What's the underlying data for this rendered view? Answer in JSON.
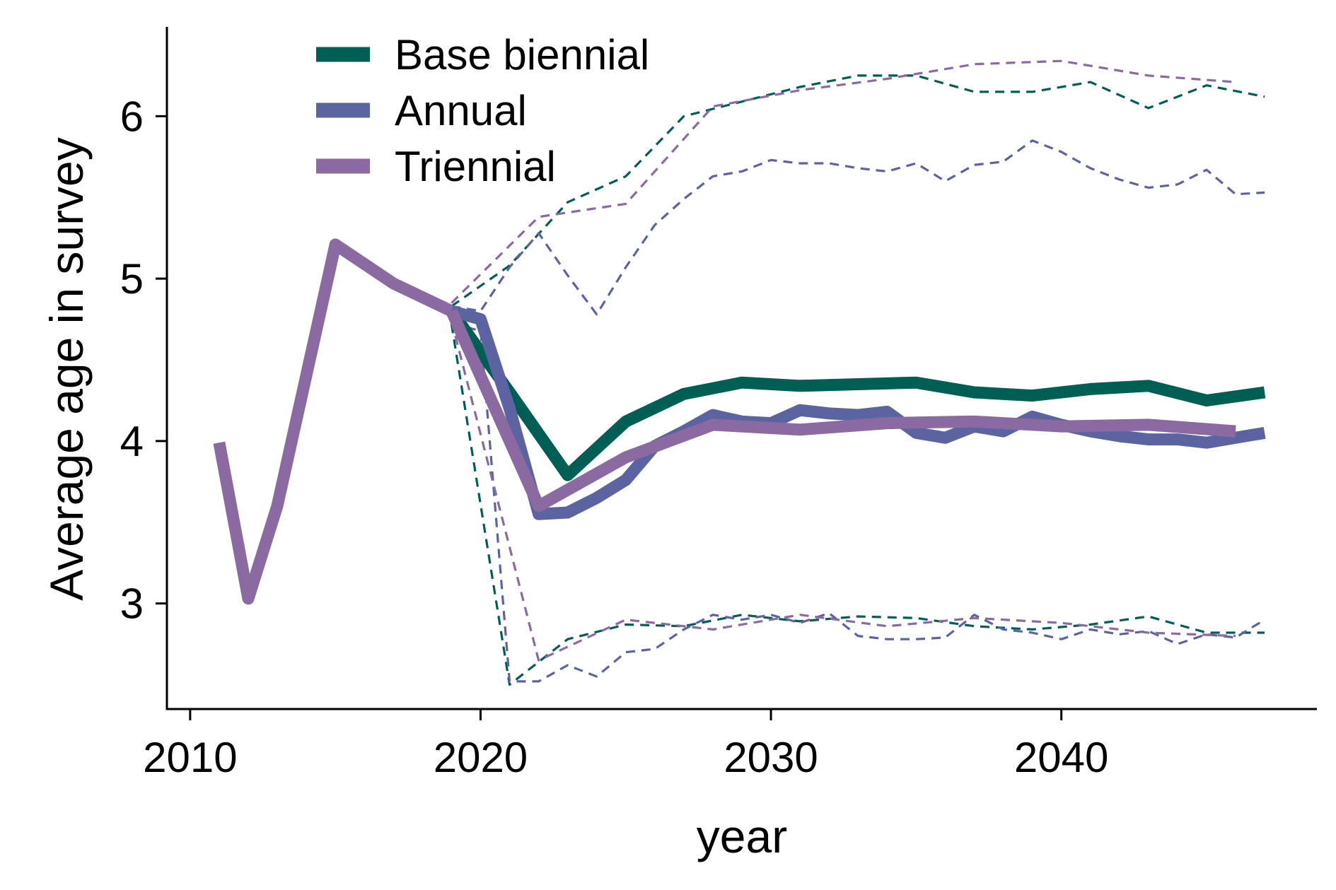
{
  "chart_data": {
    "type": "line",
    "xlabel": "year",
    "ylabel": "Average age in survey",
    "xlim": [
      2009.2,
      2048.8
    ],
    "ylim": [
      2.35,
      6.55
    ],
    "x_ticks": [
      2010,
      2020,
      2030,
      2040
    ],
    "y_ticks": [
      3,
      4,
      5,
      6
    ],
    "grid": false,
    "legend_position": "top-left",
    "history": {
      "color": "#8a6aa0",
      "x": [
        2011,
        2012,
        2013,
        2015,
        2017,
        2019
      ],
      "y": [
        3.99,
        3.03,
        3.6,
        5.21,
        4.97,
        4.8
      ]
    },
    "series": [
      {
        "name": "Base biennial",
        "color": "#005f55",
        "median": {
          "x": [
            2019,
            2021,
            2023,
            2025,
            2027,
            2029,
            2031,
            2033,
            2035,
            2037,
            2039,
            2041,
            2043,
            2045,
            2047
          ],
          "y": [
            4.8,
            4.3,
            3.79,
            4.12,
            4.29,
            4.36,
            4.34,
            4.35,
            4.36,
            4.3,
            4.28,
            4.32,
            4.34,
            4.25,
            4.3
          ]
        },
        "upper": {
          "x": [
            2019,
            2021,
            2023,
            2025,
            2027,
            2029,
            2031,
            2033,
            2035,
            2037,
            2039,
            2041,
            2043,
            2045,
            2047
          ],
          "y": [
            4.83,
            5.08,
            5.47,
            5.63,
            6.0,
            6.09,
            6.18,
            6.25,
            6.25,
            6.15,
            6.15,
            6.21,
            6.05,
            6.19,
            6.12
          ]
        },
        "lower": {
          "x": [
            2019,
            2021,
            2023,
            2025,
            2027,
            2029,
            2031,
            2033,
            2035,
            2037,
            2039,
            2041,
            2043,
            2045,
            2047
          ],
          "y": [
            4.72,
            2.5,
            2.78,
            2.87,
            2.86,
            2.93,
            2.89,
            2.92,
            2.91,
            2.86,
            2.84,
            2.87,
            2.92,
            2.82,
            2.82
          ]
        }
      },
      {
        "name": "Annual",
        "color": "#5b64a0",
        "median": {
          "x": [
            2019,
            2020,
            2021,
            2022,
            2023,
            2024,
            2025,
            2026,
            2027,
            2028,
            2029,
            2030,
            2031,
            2032,
            2033,
            2034,
            2035,
            2036,
            2037,
            2038,
            2039,
            2040,
            2041,
            2042,
            2043,
            2044,
            2045,
            2046,
            2047
          ],
          "y": [
            4.8,
            4.75,
            4.2,
            3.55,
            3.56,
            3.65,
            3.76,
            3.97,
            4.06,
            4.16,
            4.12,
            4.11,
            4.19,
            4.17,
            4.16,
            4.18,
            4.05,
            4.02,
            4.09,
            4.06,
            4.15,
            4.1,
            4.06,
            4.03,
            4.01,
            4.01,
            3.99,
            4.02,
            4.05
          ]
        },
        "upper": {
          "x": [
            2019,
            2020,
            2021,
            2022,
            2023,
            2024,
            2025,
            2026,
            2027,
            2028,
            2029,
            2030,
            2031,
            2032,
            2033,
            2034,
            2035,
            2036,
            2037,
            2038,
            2039,
            2040,
            2041,
            2042,
            2043,
            2044,
            2045,
            2046,
            2047
          ],
          "y": [
            4.83,
            4.8,
            5.07,
            5.28,
            5.02,
            4.78,
            5.07,
            5.33,
            5.49,
            5.63,
            5.66,
            5.73,
            5.71,
            5.71,
            5.68,
            5.66,
            5.71,
            5.6,
            5.7,
            5.72,
            5.85,
            5.78,
            5.68,
            5.61,
            5.56,
            5.58,
            5.67,
            5.52,
            5.53
          ]
        },
        "lower": {
          "x": [
            2019,
            2020,
            2021,
            2022,
            2023,
            2024,
            2025,
            2026,
            2027,
            2028,
            2029,
            2030,
            2031,
            2032,
            2033,
            2034,
            2035,
            2036,
            2037,
            2038,
            2039,
            2040,
            2041,
            2042,
            2043,
            2044,
            2045,
            2046,
            2047
          ],
          "y": [
            4.72,
            4.68,
            2.52,
            2.52,
            2.62,
            2.55,
            2.7,
            2.72,
            2.84,
            2.93,
            2.9,
            2.93,
            2.88,
            2.94,
            2.8,
            2.78,
            2.78,
            2.79,
            2.93,
            2.84,
            2.82,
            2.78,
            2.84,
            2.81,
            2.83,
            2.75,
            2.81,
            2.79,
            2.9
          ]
        }
      },
      {
        "name": "Triennial",
        "color": "#8a6aa0",
        "median": {
          "x": [
            2019,
            2022,
            2025,
            2028,
            2031,
            2034,
            2037,
            2040,
            2043,
            2046
          ],
          "y": [
            4.8,
            3.6,
            3.9,
            4.1,
            4.07,
            4.11,
            4.12,
            4.09,
            4.1,
            4.06
          ]
        },
        "upper": {
          "x": [
            2019,
            2022,
            2025,
            2028,
            2031,
            2034,
            2037,
            2040,
            2043,
            2046
          ],
          "y": [
            4.85,
            5.38,
            5.46,
            6.06,
            6.16,
            6.23,
            6.32,
            6.34,
            6.25,
            6.21
          ]
        },
        "lower": {
          "x": [
            2019,
            2022,
            2025,
            2028,
            2031,
            2034,
            2037,
            2040,
            2043,
            2046
          ],
          "y": [
            4.74,
            2.65,
            2.9,
            2.84,
            2.93,
            2.86,
            2.91,
            2.88,
            2.82,
            2.8
          ]
        }
      }
    ]
  }
}
